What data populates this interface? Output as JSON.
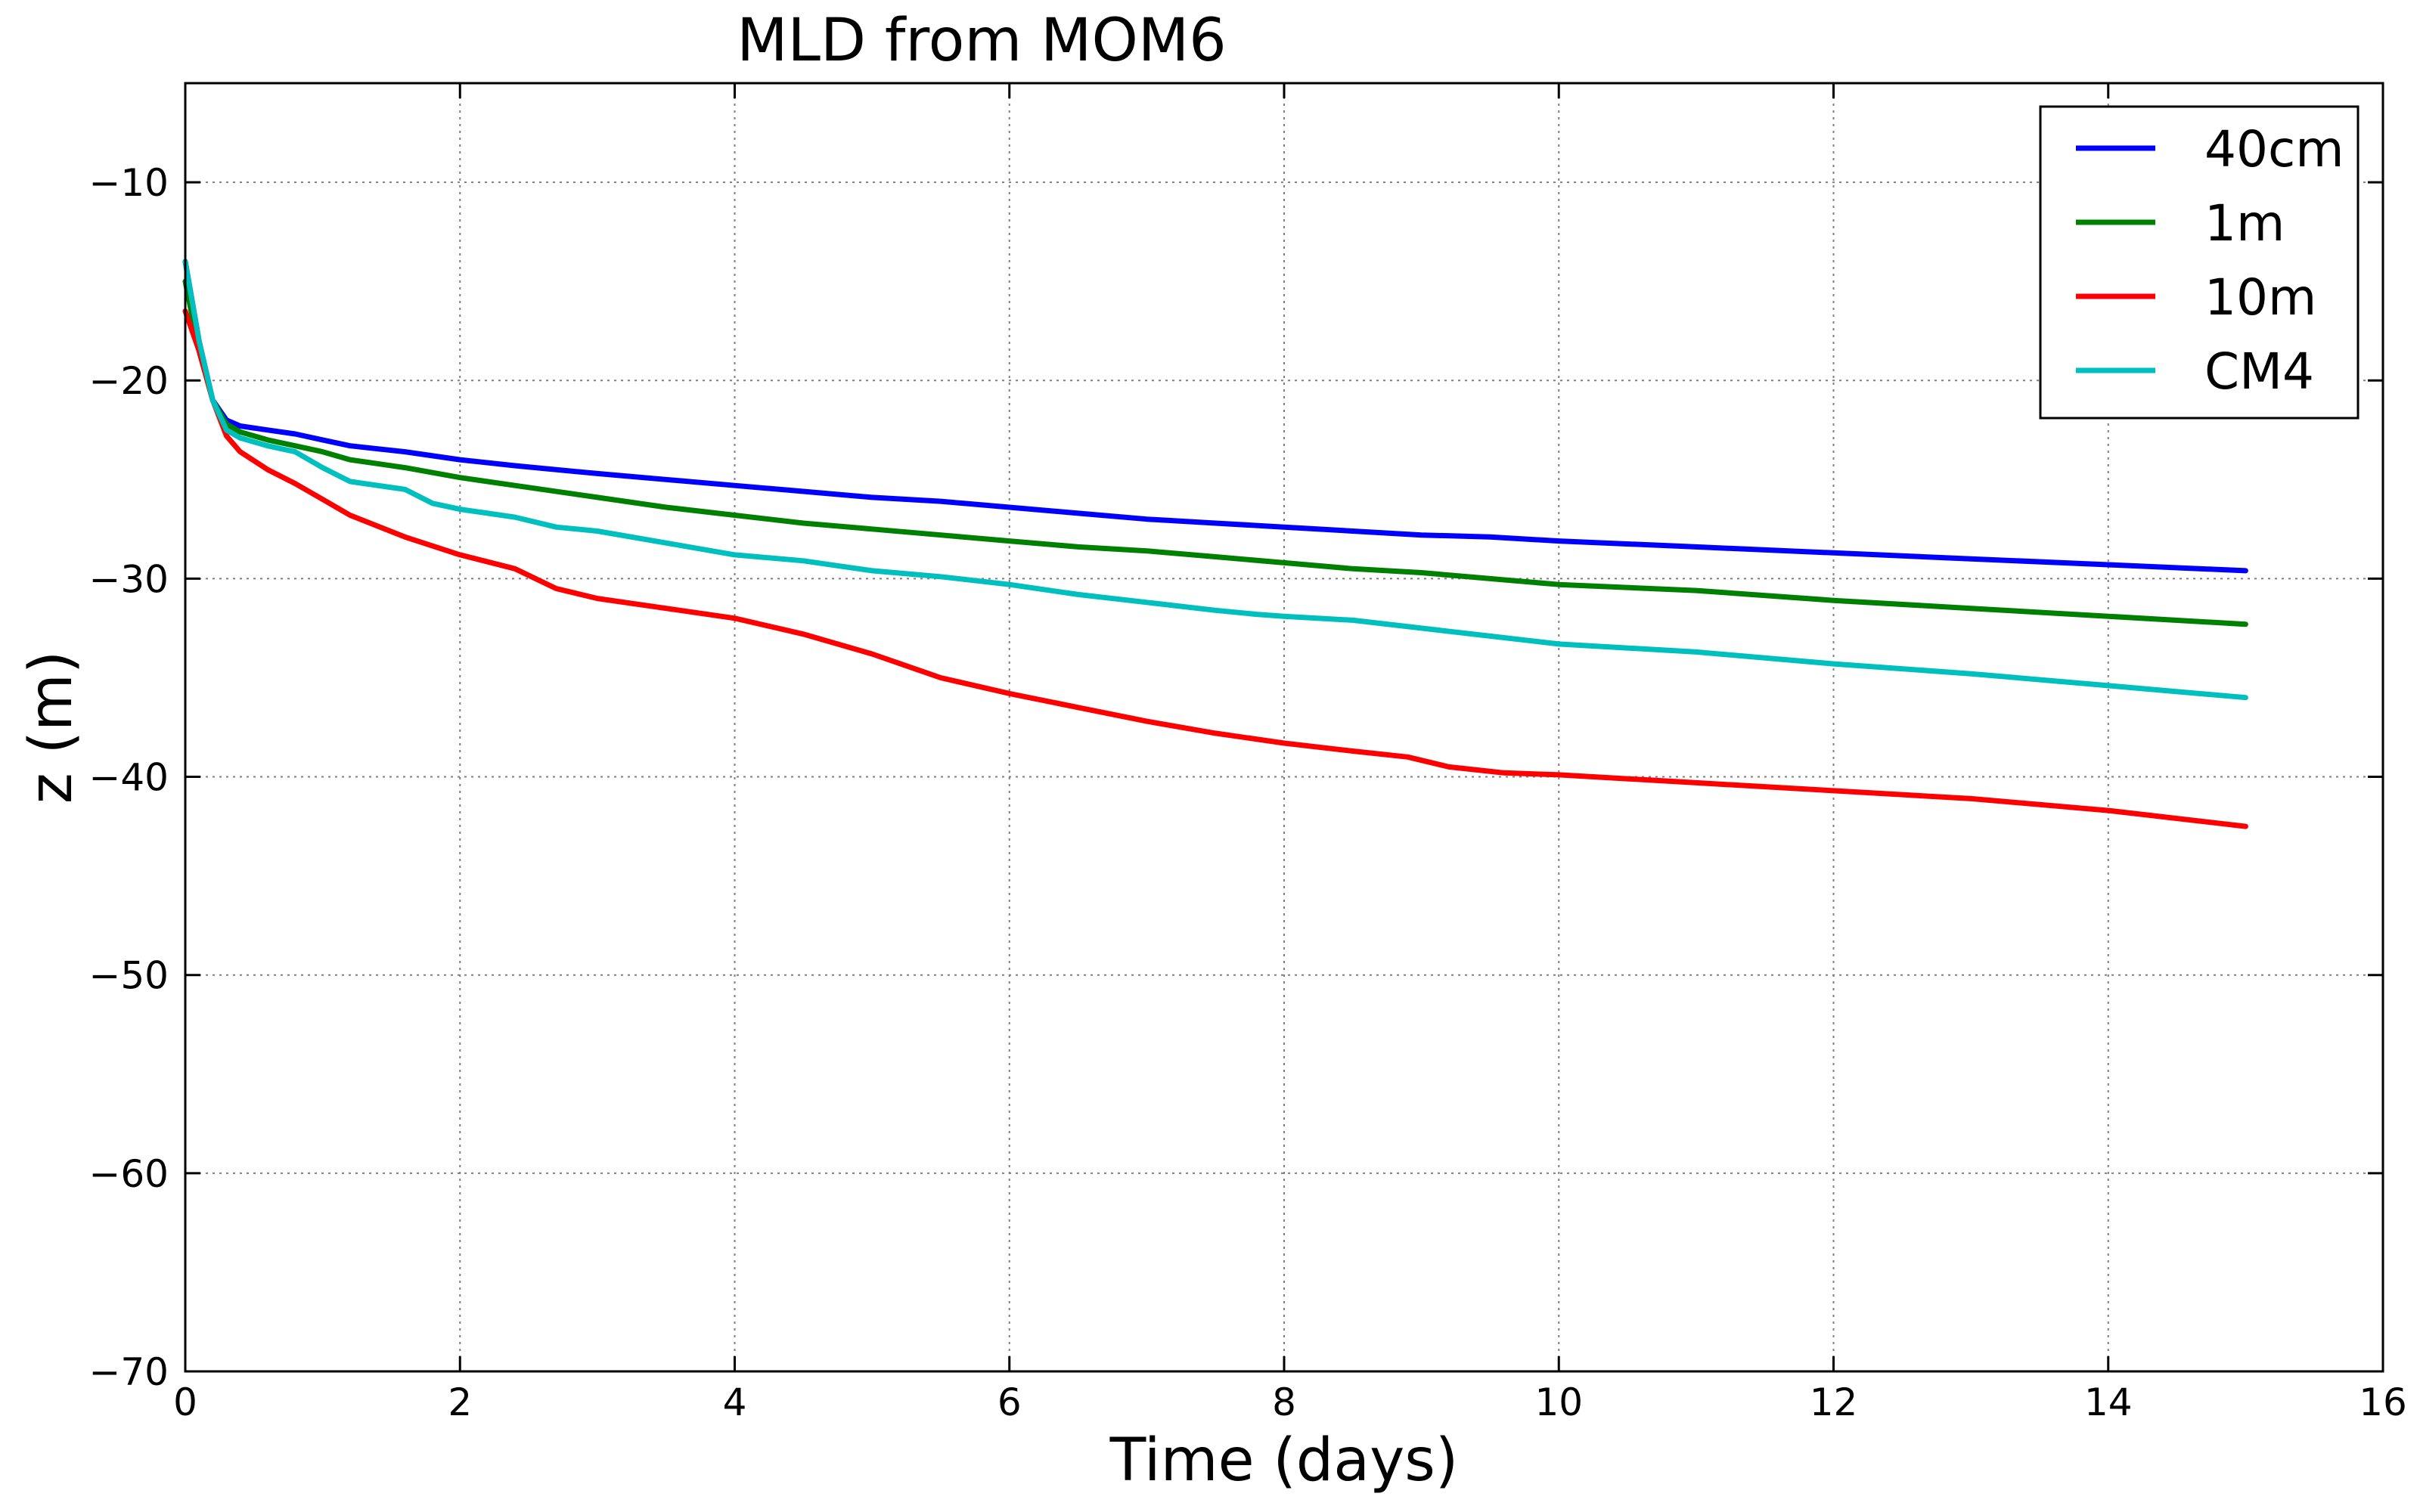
{
  "chart_data": {
    "type": "line",
    "title": "MLD from MOM6",
    "xlabel": "Time (days)",
    "ylabel": "z (m)",
    "xlim": [
      0,
      16
    ],
    "ylim": [
      -70,
      -5
    ],
    "xticks": [
      0,
      2,
      4,
      6,
      8,
      10,
      12,
      14,
      16
    ],
    "xtick_labels": [
      "0",
      "2",
      "4",
      "6",
      "8",
      "10",
      "12",
      "14",
      "16"
    ],
    "yticks": [
      -70,
      -60,
      -50,
      -40,
      -30,
      -20,
      -10
    ],
    "ytick_labels": [
      "−70",
      "−60",
      "−50",
      "−40",
      "−30",
      "−20",
      "−10"
    ],
    "grid": true,
    "legend_position": "top-right",
    "series": [
      {
        "name": "40cm",
        "color": "#0000ff",
        "x": [
          0,
          0.1,
          0.2,
          0.3,
          0.4,
          0.6,
          0.8,
          1.0,
          1.2,
          1.6,
          2.0,
          2.4,
          3.0,
          3.5,
          4.0,
          4.5,
          5.0,
          5.5,
          6.0,
          6.5,
          7.0,
          7.5,
          8.0,
          8.5,
          9.0,
          9.5,
          10.0,
          11.0,
          12.0,
          13.0,
          14.0,
          15.0
        ],
        "y": [
          -14.0,
          -18.0,
          -21.0,
          -22.0,
          -22.3,
          -22.5,
          -22.7,
          -23.0,
          -23.3,
          -23.6,
          -24.0,
          -24.3,
          -24.7,
          -25.0,
          -25.3,
          -25.6,
          -25.9,
          -26.1,
          -26.4,
          -26.7,
          -27.0,
          -27.2,
          -27.4,
          -27.6,
          -27.8,
          -27.9,
          -28.1,
          -28.4,
          -28.7,
          -29.0,
          -29.3,
          -29.6
        ]
      },
      {
        "name": "1m",
        "color": "#008000",
        "x": [
          0,
          0.1,
          0.2,
          0.3,
          0.4,
          0.6,
          0.8,
          1.0,
          1.2,
          1.6,
          2.0,
          2.4,
          3.0,
          3.5,
          4.0,
          4.5,
          5.0,
          5.5,
          6.0,
          6.5,
          7.0,
          7.5,
          8.0,
          8.5,
          9.0,
          9.5,
          10.0,
          11.0,
          12.0,
          13.0,
          14.0,
          15.0
        ],
        "y": [
          -15.0,
          -18.5,
          -21.0,
          -22.2,
          -22.6,
          -23.0,
          -23.3,
          -23.6,
          -24.0,
          -24.4,
          -24.9,
          -25.3,
          -25.9,
          -26.4,
          -26.8,
          -27.2,
          -27.5,
          -27.8,
          -28.1,
          -28.4,
          -28.6,
          -28.9,
          -29.2,
          -29.5,
          -29.7,
          -30.0,
          -30.3,
          -30.6,
          -31.1,
          -31.5,
          -31.9,
          -32.3
        ]
      },
      {
        "name": "10m",
        "color": "#ff0000",
        "x": [
          0,
          0.1,
          0.2,
          0.3,
          0.4,
          0.6,
          0.8,
          1.0,
          1.2,
          1.6,
          2.0,
          2.4,
          2.7,
          3.0,
          3.5,
          4.0,
          4.5,
          5.0,
          5.5,
          6.0,
          6.5,
          7.0,
          7.5,
          8.0,
          8.5,
          8.9,
          9.2,
          9.6,
          10.0,
          11.0,
          12.0,
          13.0,
          14.0,
          15.0
        ],
        "y": [
          -16.5,
          -18.5,
          -21.0,
          -22.8,
          -23.6,
          -24.5,
          -25.2,
          -26.0,
          -26.8,
          -27.9,
          -28.8,
          -29.5,
          -30.5,
          -31.0,
          -31.5,
          -32.0,
          -32.8,
          -33.8,
          -35.0,
          -35.8,
          -36.5,
          -37.2,
          -37.8,
          -38.3,
          -38.7,
          -39.0,
          -39.5,
          -39.8,
          -39.9,
          -40.3,
          -40.7,
          -41.1,
          -41.7,
          -42.5
        ]
      },
      {
        "name": "CM4",
        "color": "#00bfbf",
        "x": [
          0,
          0.1,
          0.2,
          0.3,
          0.4,
          0.6,
          0.8,
          1.0,
          1.2,
          1.6,
          1.8,
          2.0,
          2.4,
          2.7,
          3.0,
          3.5,
          4.0,
          4.5,
          4.8,
          5.0,
          5.5,
          6.0,
          6.5,
          7.0,
          7.5,
          7.8,
          8.0,
          8.5,
          9.0,
          9.5,
          10.0,
          11.0,
          12.0,
          13.0,
          14.0,
          15.0
        ],
        "y": [
          -14.0,
          -18.0,
          -21.0,
          -22.5,
          -22.9,
          -23.3,
          -23.6,
          -24.4,
          -25.1,
          -25.5,
          -26.2,
          -26.5,
          -26.9,
          -27.4,
          -27.6,
          -28.2,
          -28.8,
          -29.1,
          -29.4,
          -29.6,
          -29.9,
          -30.3,
          -30.8,
          -31.2,
          -31.6,
          -31.8,
          -31.9,
          -32.1,
          -32.5,
          -32.9,
          -33.3,
          -33.7,
          -34.3,
          -34.8,
          -35.4,
          -36.0
        ]
      }
    ]
  }
}
